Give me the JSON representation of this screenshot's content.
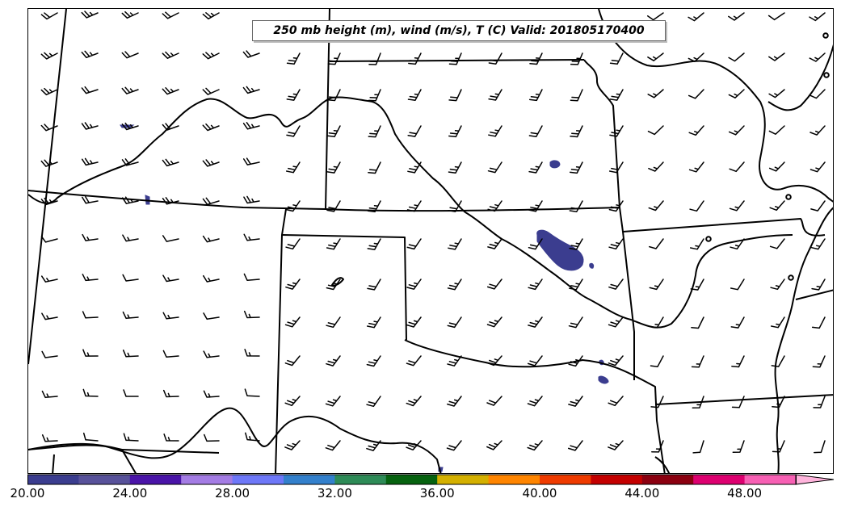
{
  "title": "250 mb height (m), wind (m/s), T (C) Valid: 201805170400",
  "colorbar": {
    "colors": [
      "#3b3d8f",
      "#58529a",
      "#4a14a8",
      "#a47ce4",
      "#6e78f8",
      "#3380cc",
      "#2e8b57",
      "#06620f",
      "#d4b000",
      "#ff8500",
      "#ef3b00",
      "#c40000",
      "#8b0010",
      "#dd0070",
      "#f760b4",
      "#ffb4dc"
    ],
    "tick_labels": [
      "20.00",
      "24.00",
      "28.00",
      "32.00",
      "36.00",
      "40.00",
      "44.00",
      "48.00"
    ],
    "has_extend_arrow": true
  },
  "wind_barbs_color": "#000000",
  "boundaries_color": "#000000",
  "shading_color": "#3b3d8f"
}
